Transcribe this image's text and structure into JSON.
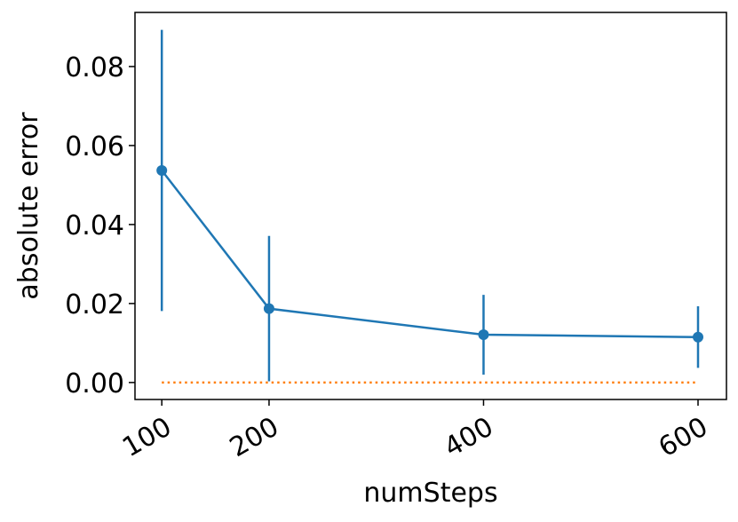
{
  "chart_data": {
    "type": "line",
    "x_label": "numSteps",
    "y_label": "absolute error",
    "x": [
      100,
      200,
      400,
      600
    ],
    "series": [
      {
        "color": "#1f77b4",
        "values": [
          0.0537,
          0.0187,
          0.0121,
          0.0115
        ],
        "errors": [
          0.0356,
          0.0184,
          0.0101,
          0.0078
        ],
        "markers": true,
        "linestyle": "solid"
      },
      {
        "color": "#ff7f0e",
        "values": [
          0,
          0,
          0,
          0
        ],
        "markers": false,
        "linestyle": "dotted"
      }
    ],
    "xlim": [
      75,
      626.5
    ],
    "ylim": [
      -0.0043,
      0.0937
    ],
    "xticks": [
      100,
      200,
      400,
      600
    ],
    "yticks": [
      {
        "value": 0,
        "label": "0.00"
      },
      {
        "value": 0.02,
        "label": "0.02"
      },
      {
        "value": 0.04,
        "label": "0.04"
      },
      {
        "value": 0.06,
        "label": "0.06"
      },
      {
        "value": 0.08,
        "label": "0.08"
      }
    ],
    "grid": false
  }
}
